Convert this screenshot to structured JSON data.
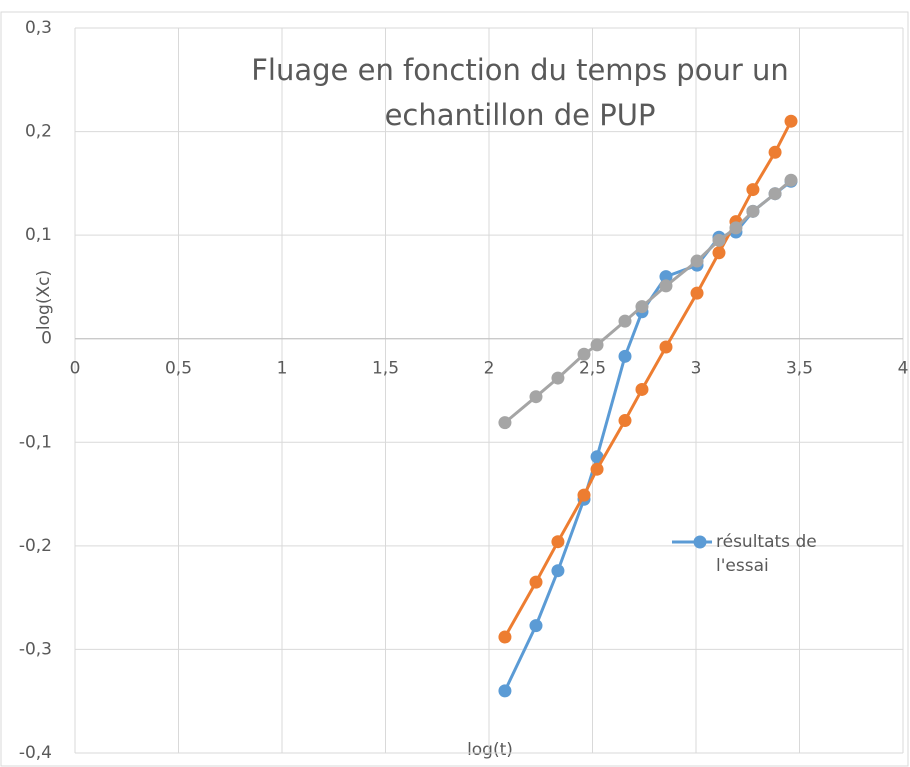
{
  "chart_data": {
    "type": "scatter",
    "title": "Fluage en fonction du temps pour un echantillon de PUP",
    "x_label": "log(t)",
    "y_label": "log(Xc)",
    "x": [
      2.077,
      2.227,
      2.333,
      2.459,
      2.522,
      2.657,
      2.739,
      2.855,
      3.005,
      3.111,
      3.193,
      3.275,
      3.382,
      3.459
    ],
    "series": [
      {
        "name": "résultats de l'essai",
        "color": "#5b9bd5",
        "values": [
          -0.34,
          -0.277,
          -0.224,
          -0.155,
          -0.114,
          -0.017,
          0.026,
          0.06,
          0.071,
          0.098,
          0.103,
          0.123,
          0.14,
          0.152
        ]
      },
      {
        "color": "#ed7d31",
        "values": [
          -0.288,
          -0.235,
          -0.196,
          -0.151,
          -0.126,
          -0.079,
          -0.049,
          -0.008,
          0.044,
          0.083,
          0.113,
          0.144,
          0.18,
          0.21
        ]
      },
      {
        "color": "#a5a5a5",
        "values": [
          -0.081,
          -0.056,
          -0.038,
          -0.015,
          -0.006,
          0.017,
          0.031,
          0.051,
          0.075,
          0.095,
          0.107,
          0.123,
          0.14,
          0.153
        ]
      }
    ],
    "xlim": [
      0,
      4
    ],
    "xticks": [
      0,
      {
        "value": 0.5,
        "label": "0,5"
      },
      1,
      {
        "value": 1.5,
        "label": "1,5"
      },
      2,
      {
        "value": 2.5,
        "label": "2,5"
      },
      3,
      {
        "value": 3.5,
        "label": "3,5"
      },
      4
    ],
    "ylim": [
      -0.4,
      0.3
    ],
    "yticks": [
      {
        "value": -0.4,
        "label": "-0,4"
      },
      {
        "value": -0.3,
        "label": "-0,3"
      },
      {
        "value": -0.2,
        "label": "-0,2"
      },
      {
        "value": -0.1,
        "label": "-0,1"
      },
      0,
      {
        "value": 0.1,
        "label": "0,1"
      },
      {
        "value": 0.2,
        "label": "0,2"
      },
      {
        "value": 0.3,
        "label": "0,3"
      }
    ],
    "grid": true
  }
}
